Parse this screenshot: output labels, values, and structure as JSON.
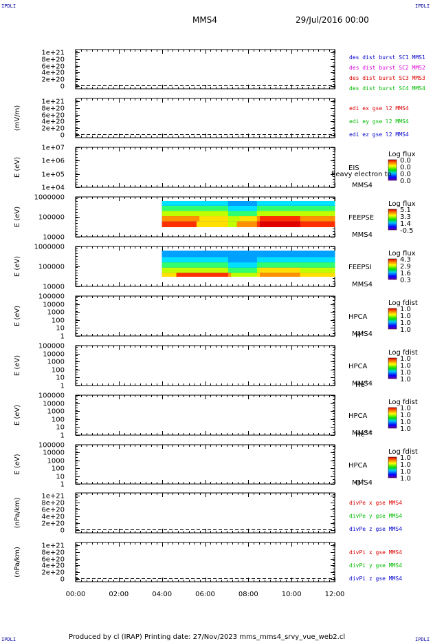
{
  "header": {
    "corner_left_top": "IPDLI",
    "corner_right_top": "IPDLI",
    "corner_left_bottom": "IPDLI",
    "corner_right_bottom": "IPDLI",
    "spacecraft": "MMS4",
    "datetime": "29/Jul/2016 00:00"
  },
  "footer": {
    "text": "Produced by cl (IRAP)   Printing date: 27/Nov/2023   mms_mms4_srvy_vue_web2.cl"
  },
  "colors": {
    "mms1": "#0000cc",
    "mms2": "#dd00dd",
    "mms3": "#dd0000",
    "mms4": "#00bb00",
    "x": "#dd0000",
    "y": "#00bb00",
    "z": "#0000cc"
  },
  "chart_data": [
    {
      "type": "line",
      "panel": "des dist burst",
      "xlabel": "",
      "ylabel": "",
      "yticks": [
        "1e+21",
        "8e+20",
        "6e+20",
        "4e+20",
        "2e+20",
        "0"
      ],
      "legend": [
        {
          "name": "des dist burst SC1 MMS1",
          "color": "#0000cc"
        },
        {
          "name": "des dist burst SC2 MMS2",
          "color": "#dd00dd"
        },
        {
          "name": "des dist burst SC3 MMS3",
          "color": "#dd0000"
        },
        {
          "name": "des dist burst SC4 MMS4",
          "color": "#00bb00"
        }
      ],
      "series": []
    },
    {
      "type": "line",
      "panel": "edi",
      "ylabel": "(mV/m)",
      "yticks": [
        "1e+21",
        "8e+20",
        "6e+20",
        "4e+20",
        "2e+20",
        "0"
      ],
      "legend": [
        {
          "name": "edi ex gse l2 MMS4",
          "color": "#dd0000"
        },
        {
          "name": "edi ey gse l2 MMS4",
          "color": "#00bb00"
        },
        {
          "name": "edi ez gse l2 MMS4",
          "color": "#0000cc"
        }
      ],
      "series": []
    },
    {
      "type": "heatmap",
      "panel": "EIS",
      "ylabel": "E (eV)",
      "yticks": [
        "1e+07",
        "1e+06",
        "1e+05",
        "1e+04"
      ],
      "right_labels": [
        "EIS",
        "MMS4"
      ],
      "overlay_text": "heavy electron to",
      "colorbar": {
        "title": "Log flux",
        "ticks": [
          "0.0",
          "0.0",
          "0.0",
          "0.0"
        ]
      },
      "data_window": [
        "",
        ""
      ]
    },
    {
      "type": "heatmap",
      "panel": "FEEPSE",
      "ylabel": "E (eV)",
      "yticks": [
        "1000000",
        "100000",
        "10000"
      ],
      "right_labels": [
        "FEEPSE",
        "MMS4"
      ],
      "colorbar": {
        "title": "Log flux",
        "ticks": [
          "5.1",
          "3.3",
          "1.4",
          "-0.5"
        ]
      },
      "data_window": [
        "04:00",
        "12:00"
      ]
    },
    {
      "type": "heatmap",
      "panel": "FEEPSI",
      "ylabel": "E (eV)",
      "yticks": [
        "1000000",
        "100000",
        "10000"
      ],
      "right_labels": [
        "FEEPSI",
        "MMS4"
      ],
      "colorbar": {
        "title": "Log flux",
        "ticks": [
          "4.3",
          "2.9",
          "1.6",
          "0.3"
        ]
      },
      "data_window": [
        "04:00",
        "12:00"
      ]
    },
    {
      "type": "heatmap",
      "panel": "HPCA H+",
      "ylabel": "E (eV)",
      "yticks": [
        "100000",
        "10000",
        "1000",
        "100",
        "10",
        "1"
      ],
      "right_labels": [
        "HPCA",
        "MMS4"
      ],
      "species": "H",
      "species_charge": "+",
      "colorbar": {
        "title": "Log fdist",
        "ticks": [
          "1.0",
          "1.0",
          "1.0",
          "1.0"
        ]
      }
    },
    {
      "type": "heatmap",
      "panel": "HPCA He+",
      "ylabel": "E (eV)",
      "yticks": [
        "100000",
        "10000",
        "1000",
        "100",
        "10",
        "1"
      ],
      "right_labels": [
        "HPCA",
        "MMS4"
      ],
      "species": "He",
      "species_charge": "+",
      "colorbar": {
        "title": "Log fdist",
        "ticks": [
          "1.0",
          "1.0",
          "1.0",
          "1.0"
        ]
      }
    },
    {
      "type": "heatmap",
      "panel": "HPCA He++",
      "ylabel": "E (eV)",
      "yticks": [
        "100000",
        "10000",
        "1000",
        "100",
        "10",
        "1"
      ],
      "right_labels": [
        "HPCA",
        "MMS4"
      ],
      "species": "He",
      "species_charge": "++",
      "colorbar": {
        "title": "Log fdist",
        "ticks": [
          "1.0",
          "1.0",
          "1.0",
          "1.0"
        ]
      }
    },
    {
      "type": "heatmap",
      "panel": "HPCA O+",
      "ylabel": "E (eV)",
      "yticks": [
        "100000",
        "10000",
        "1000",
        "100",
        "10",
        "1"
      ],
      "right_labels": [
        "HPCA",
        "MMS4"
      ],
      "species": "O",
      "species_charge": "+",
      "colorbar": {
        "title": "Log fdist",
        "ticks": [
          "1.0",
          "1.0",
          "1.0",
          "1.0"
        ]
      }
    },
    {
      "type": "line",
      "panel": "divPe",
      "ylabel": "(nPa/km)",
      "yticks": [
        "1e+21",
        "8e+20",
        "6e+20",
        "4e+20",
        "2e+20",
        "0"
      ],
      "legend": [
        {
          "name": "divPe x gse MMS4",
          "color": "#dd0000"
        },
        {
          "name": "divPe y gse MMS4",
          "color": "#00bb00"
        },
        {
          "name": "divPe z gse MMS4",
          "color": "#0000cc"
        }
      ],
      "series": []
    },
    {
      "type": "line",
      "panel": "divPi",
      "ylabel": "(nPa/km)",
      "yticks": [
        "1e+21",
        "8e+20",
        "6e+20",
        "4e+20",
        "2e+20",
        "0"
      ],
      "legend": [
        {
          "name": "divPi x gse MMS4",
          "color": "#dd0000"
        },
        {
          "name": "divPi y gse MMS4",
          "color": "#00bb00"
        },
        {
          "name": "divPi z gse MMS4",
          "color": "#0000cc"
        }
      ],
      "series": []
    }
  ],
  "x_axis": {
    "ticks": [
      "00:00",
      "02:00",
      "04:00",
      "06:00",
      "08:00",
      "10:00",
      "12:00"
    ],
    "range": [
      "00:00",
      "12:00"
    ]
  }
}
